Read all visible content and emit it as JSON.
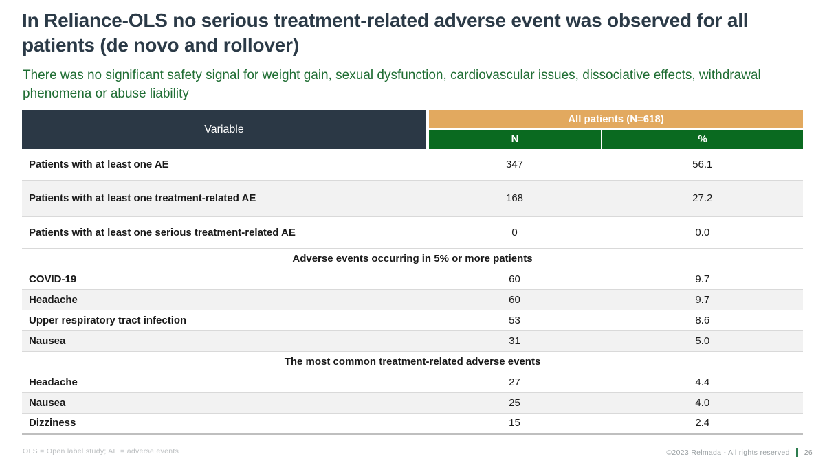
{
  "slide": {
    "title": "In Reliance-OLS no serious treatment-related adverse event was observed for all patients (de novo and rollover)",
    "subtitle": "There was no significant safety signal for weight gain, sexual dysfunction, cardiovascular issues, dissociative effects, withdrawal phenomena or abuse liability"
  },
  "table": {
    "header": {
      "variable": "Variable",
      "group": "All patients (N=618)",
      "col_n": "N",
      "col_pct": "%"
    },
    "rows": [
      {
        "label": "Patients with at least one AE",
        "n": "347",
        "pct": "56.1"
      },
      {
        "label": "Patients with at least one treatment-related AE",
        "n": "168",
        "pct": "27.2"
      },
      {
        "label": "Patients with at least one serious treatment-related AE",
        "n": "0",
        "pct": "0.0"
      },
      {
        "section": "Adverse events occurring in 5% or more patients"
      },
      {
        "label": "COVID-19",
        "n": "60",
        "pct": "9.7"
      },
      {
        "label": "Headache",
        "n": "60",
        "pct": "9.7"
      },
      {
        "label": "Upper respiratory tract infection",
        "n": "53",
        "pct": "8.6"
      },
      {
        "label": "Nausea",
        "n": "31",
        "pct": "5.0"
      },
      {
        "section": "The most common treatment-related adverse events"
      },
      {
        "label": "Headache",
        "n": "27",
        "pct": "4.4"
      },
      {
        "label": "Nausea",
        "n": "25",
        "pct": "4.0"
      },
      {
        "label": "Dizziness",
        "n": "15",
        "pct": "2.4"
      }
    ]
  },
  "footer": {
    "abbreviations": "OLS = Open label study; AE = adverse events",
    "copyright": "©2023 Relmada - All rights reserved",
    "page": "26"
  },
  "colors": {
    "title": "#2B3A47",
    "subtitle_green": "#1F6D33",
    "header_dark": "#2B3845",
    "header_orange": "#E2A95F",
    "header_green": "#0A6A20",
    "row_shade": "#F2F2F2",
    "page_bar_green": "#2E7D4F"
  }
}
